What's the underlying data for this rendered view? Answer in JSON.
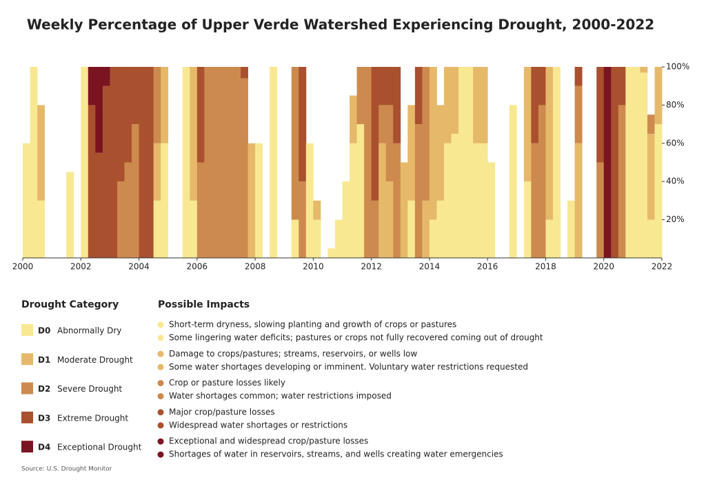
{
  "chart_data": {
    "type": "stacked_bar",
    "title": "Weekly Percentage of Upper Verde Watershed Experiencing Drought, 2000-2022",
    "x": [
      2000,
      2000.25,
      2000.5,
      2000.75,
      2001,
      2001.25,
      2001.5,
      2001.75,
      2002,
      2002.25,
      2002.5,
      2002.75,
      2003,
      2003.25,
      2003.5,
      2003.75,
      2004,
      2004.25,
      2004.5,
      2004.75,
      2005,
      2005.25,
      2005.5,
      2005.75,
      2006,
      2006.25,
      2006.5,
      2006.75,
      2007,
      2007.25,
      2007.5,
      2007.75,
      2008,
      2008.25,
      2008.5,
      2008.75,
      2009,
      2009.25,
      2009.5,
      2009.75,
      2010,
      2010.25,
      2010.5,
      2010.75,
      2011,
      2011.25,
      2011.5,
      2011.75,
      2012,
      2012.25,
      2012.5,
      2012.75,
      2013,
      2013.25,
      2013.5,
      2013.75,
      2014,
      2014.25,
      2014.5,
      2014.75,
      2015,
      2015.25,
      2015.5,
      2015.75,
      2016,
      2016.25,
      2016.5,
      2016.75,
      2017,
      2017.25,
      2017.5,
      2017.75,
      2018,
      2018.25,
      2018.5,
      2018.75,
      2019,
      2019.25,
      2019.5,
      2019.75,
      2020,
      2020.25,
      2020.5,
      2020.75,
      2021,
      2021.25,
      2021.5,
      2021.75
    ],
    "series": [
      {
        "code": "D0",
        "name": "Abnormally Dry",
        "color": "#f8e891",
        "impacts": [
          "Short-term dryness, slowing planting and growth of crops or pastures",
          "Some lingering water deficits; pastures or crops not fully recovered coming out of drought"
        ],
        "values": [
          60,
          100,
          30,
          0,
          0,
          0,
          45,
          0,
          100,
          0,
          0,
          0,
          0,
          0,
          0,
          0,
          0,
          0,
          30,
          60,
          0,
          0,
          100,
          30,
          0,
          0,
          0,
          0,
          0,
          0,
          0,
          0,
          60,
          0,
          100,
          0,
          0,
          20,
          0,
          60,
          20,
          0,
          5,
          20,
          40,
          60,
          70,
          0,
          0,
          0,
          0,
          0,
          0,
          30,
          0,
          0,
          20,
          30,
          60,
          65,
          100,
          100,
          60,
          60,
          50,
          0,
          0,
          80,
          0,
          40,
          0,
          0,
          20,
          100,
          0,
          30,
          0,
          0,
          0,
          0,
          0,
          0,
          0,
          100,
          100,
          97,
          20,
          70
        ]
      },
      {
        "code": "D1",
        "name": "Moderate Drought",
        "color": "#e6b96a",
        "impacts": [
          "Damage to crops/pastures; streams, reservoirs, or wells low",
          "Some water shortages developing or imminent. Voluntary water restrictions requested"
        ],
        "values": [
          0,
          0,
          50,
          0,
          0,
          0,
          0,
          0,
          0,
          0,
          0,
          0,
          0,
          0,
          0,
          0,
          0,
          0,
          30,
          40,
          0,
          0,
          0,
          70,
          0,
          0,
          0,
          0,
          0,
          0,
          0,
          60,
          0,
          0,
          0,
          0,
          0,
          0,
          0,
          0,
          10,
          0,
          0,
          0,
          0,
          25,
          0,
          0,
          0,
          60,
          40,
          0,
          50,
          50,
          0,
          30,
          80,
          50,
          40,
          35,
          0,
          0,
          40,
          40,
          0,
          0,
          0,
          0,
          0,
          60,
          0,
          0,
          80,
          0,
          0,
          0,
          60,
          0,
          0,
          0,
          0,
          0,
          0,
          0,
          0,
          3,
          45,
          30
        ]
      },
      {
        "code": "D2",
        "name": "Severe Drought",
        "color": "#cd8a4e",
        "impacts": [
          "Crop or pasture losses likely",
          "Water shortages common; water restrictions imposed"
        ],
        "values": [
          0,
          0,
          0,
          0,
          0,
          0,
          0,
          0,
          0,
          0,
          0,
          0,
          0,
          40,
          50,
          70,
          0,
          0,
          40,
          0,
          0,
          0,
          0,
          0,
          50,
          100,
          100,
          100,
          100,
          100,
          94,
          0,
          0,
          0,
          0,
          0,
          0,
          80,
          40,
          0,
          0,
          0,
          0,
          0,
          0,
          0,
          30,
          100,
          30,
          20,
          40,
          60,
          0,
          0,
          70,
          70,
          0,
          0,
          0,
          0,
          0,
          0,
          0,
          0,
          0,
          0,
          0,
          0,
          0,
          0,
          60,
          80,
          0,
          0,
          0,
          0,
          30,
          0,
          0,
          50,
          0,
          0,
          80,
          0,
          0,
          0,
          10,
          0
        ]
      },
      {
        "code": "D3",
        "name": "Extreme Drought",
        "color": "#a9502f",
        "impacts": [
          "Major crop/pasture losses",
          "Widespread water shortages or restrictions"
        ],
        "values": [
          0,
          0,
          0,
          0,
          0,
          0,
          0,
          0,
          0,
          80,
          55,
          90,
          100,
          60,
          50,
          30,
          100,
          100,
          0,
          0,
          0,
          0,
          0,
          0,
          50,
          0,
          0,
          0,
          0,
          0,
          6,
          0,
          0,
          0,
          0,
          0,
          0,
          0,
          60,
          0,
          0,
          0,
          0,
          0,
          0,
          0,
          0,
          0,
          70,
          20,
          20,
          40,
          0,
          0,
          30,
          0,
          0,
          0,
          0,
          0,
          0,
          0,
          0,
          0,
          0,
          0,
          0,
          0,
          0,
          0,
          40,
          20,
          0,
          0,
          0,
          0,
          10,
          0,
          0,
          50,
          0,
          100,
          20,
          0,
          0,
          0,
          0,
          0
        ]
      },
      {
        "code": "D4",
        "name": "Exceptional Drought",
        "color": "#7a1420",
        "impacts": [
          "Exceptional and widespread crop/pasture losses",
          "Shortages of water in reservoirs, streams, and wells creating water emergencies"
        ],
        "values": [
          0,
          0,
          0,
          0,
          0,
          0,
          0,
          0,
          0,
          20,
          45,
          10,
          0,
          0,
          0,
          0,
          0,
          0,
          0,
          0,
          0,
          0,
          0,
          0,
          0,
          0,
          0,
          0,
          0,
          0,
          0,
          0,
          0,
          0,
          0,
          0,
          0,
          0,
          0,
          0,
          0,
          0,
          0,
          0,
          0,
          0,
          0,
          0,
          0,
          0,
          0,
          0,
          0,
          0,
          0,
          0,
          0,
          0,
          0,
          0,
          0,
          0,
          0,
          0,
          0,
          0,
          0,
          0,
          0,
          0,
          0,
          0,
          0,
          0,
          0,
          0,
          0,
          0,
          0,
          0,
          100,
          0,
          0,
          0,
          0,
          0,
          0,
          0
        ]
      }
    ],
    "xlim": [
      2000,
      2022
    ],
    "xticks": [
      2000,
      2002,
      2004,
      2006,
      2008,
      2010,
      2012,
      2014,
      2016,
      2018,
      2020,
      2022
    ],
    "ylim": [
      0,
      100
    ],
    "yticks": [
      {
        "value": 20,
        "label": "20%"
      },
      {
        "value": 40,
        "label": "40%"
      },
      {
        "value": 60,
        "label": "60%"
      },
      {
        "value": 80,
        "label": "80%"
      },
      {
        "value": 100,
        "label": "100%"
      }
    ],
    "y_axis_side": "right",
    "grid": false,
    "legend_title": "Drought Category",
    "impacts_title": "Possible Impacts",
    "source": "Source: U.S. Drought Monitor"
  }
}
